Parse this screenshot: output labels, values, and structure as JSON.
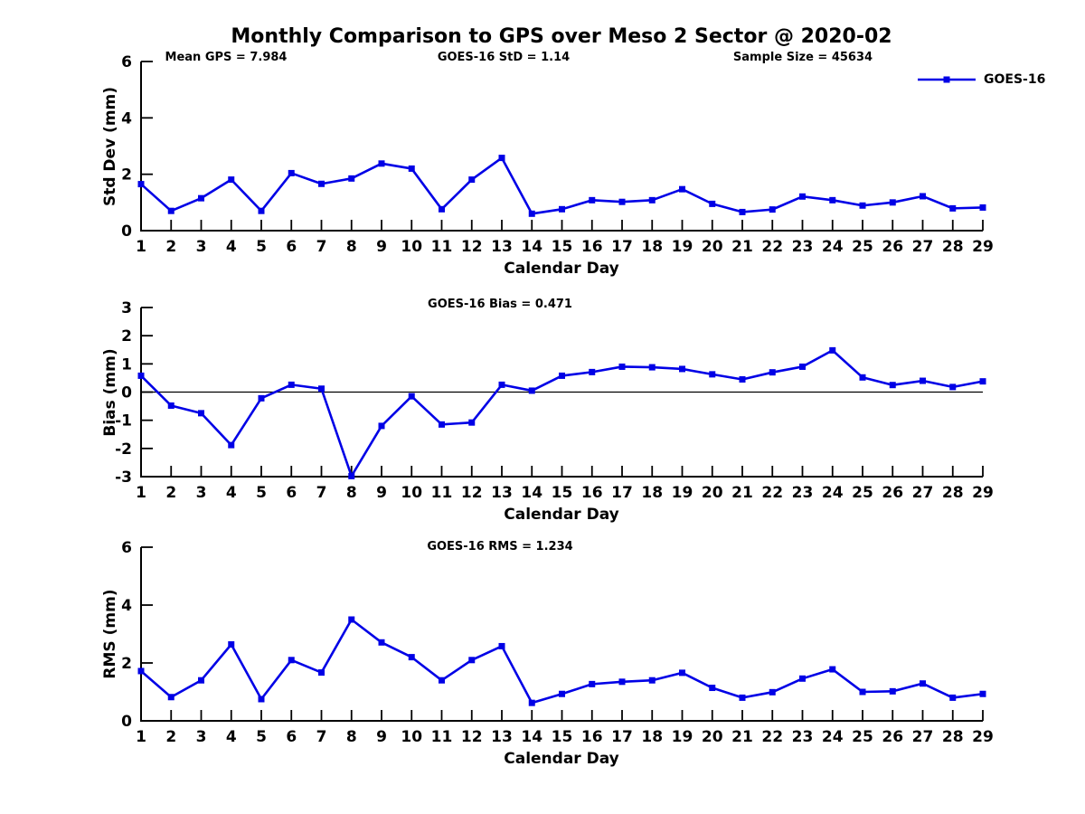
{
  "title": "Monthly Comparison to GPS over Meso 2 Sector @ 2020-02",
  "legend": {
    "label": "GOES-16"
  },
  "colors": {
    "line": "#0000E6",
    "axis": "#000000",
    "text": "#000000",
    "background": "#FFFFFF"
  },
  "chart_data": [
    {
      "type": "line",
      "name": "std-dev-panel",
      "ylabel": "Std Dev (mm)",
      "xlabel": "Calendar Day",
      "ylim": [
        0,
        6
      ],
      "yticks": [
        0,
        2,
        4,
        6
      ],
      "grid": false,
      "zero_line": false,
      "legend_position": "upper right",
      "annotations": [
        {
          "text": "Mean GPS = 7.984"
        },
        {
          "text": "GOES-16 StD = 1.14"
        },
        {
          "text": "Sample Size = 45634"
        }
      ],
      "x": [
        1,
        2,
        3,
        4,
        5,
        6,
        7,
        8,
        9,
        10,
        11,
        12,
        13,
        14,
        15,
        16,
        17,
        18,
        19,
        20,
        21,
        22,
        23,
        24,
        25,
        26,
        27,
        28,
        29
      ],
      "series": [
        {
          "name": "GOES-16",
          "values": [
            1.65,
            0.7,
            1.15,
            1.81,
            0.7,
            2.04,
            1.66,
            1.85,
            2.38,
            2.2,
            0.76,
            1.81,
            2.58,
            0.6,
            0.76,
            1.08,
            1.02,
            1.08,
            1.47,
            0.95,
            0.66,
            0.75,
            1.21,
            1.08,
            0.89,
            1.0,
            1.22,
            0.79,
            0.82
          ]
        }
      ]
    },
    {
      "type": "line",
      "name": "bias-panel",
      "ylabel": "Bias (mm)",
      "xlabel": "Calendar Day",
      "ylim": [
        -3,
        3
      ],
      "yticks": [
        3,
        2,
        1,
        0,
        -1,
        -2,
        -3
      ],
      "grid": false,
      "zero_line": true,
      "annotations": [
        {
          "text": "GOES-16 Bias = 0.471"
        }
      ],
      "x": [
        1,
        2,
        3,
        4,
        5,
        6,
        7,
        8,
        9,
        10,
        11,
        12,
        13,
        14,
        15,
        16,
        17,
        18,
        19,
        20,
        21,
        22,
        23,
        24,
        25,
        26,
        27,
        28,
        29
      ],
      "series": [
        {
          "name": "GOES-16",
          "values": [
            0.58,
            -0.48,
            -0.75,
            -1.88,
            -0.22,
            0.26,
            0.12,
            -2.98,
            -1.2,
            -0.15,
            -1.15,
            -1.08,
            0.26,
            0.05,
            0.58,
            0.71,
            0.9,
            0.88,
            0.82,
            0.63,
            0.45,
            0.7,
            0.9,
            1.48,
            0.52,
            0.25,
            0.4,
            0.18,
            0.38
          ]
        }
      ]
    },
    {
      "type": "line",
      "name": "rms-panel",
      "ylabel": "RMS (mm)",
      "xlabel": "Calendar Day",
      "ylim": [
        0,
        6
      ],
      "yticks": [
        0,
        2,
        4,
        6
      ],
      "grid": false,
      "zero_line": false,
      "annotations": [
        {
          "text": "GOES-16 RMS = 1.234"
        }
      ],
      "x": [
        1,
        2,
        3,
        4,
        5,
        6,
        7,
        8,
        9,
        10,
        11,
        12,
        13,
        14,
        15,
        16,
        17,
        18,
        19,
        20,
        21,
        22,
        23,
        24,
        25,
        26,
        27,
        28,
        29
      ],
      "series": [
        {
          "name": "GOES-16",
          "values": [
            1.72,
            0.82,
            1.4,
            2.64,
            0.75,
            2.1,
            1.67,
            3.5,
            2.71,
            2.2,
            1.4,
            2.1,
            2.58,
            0.62,
            0.93,
            1.27,
            1.35,
            1.4,
            1.66,
            1.14,
            0.8,
            0.99,
            1.46,
            1.78,
            1.0,
            1.02,
            1.29,
            0.8,
            0.93
          ]
        }
      ]
    }
  ]
}
